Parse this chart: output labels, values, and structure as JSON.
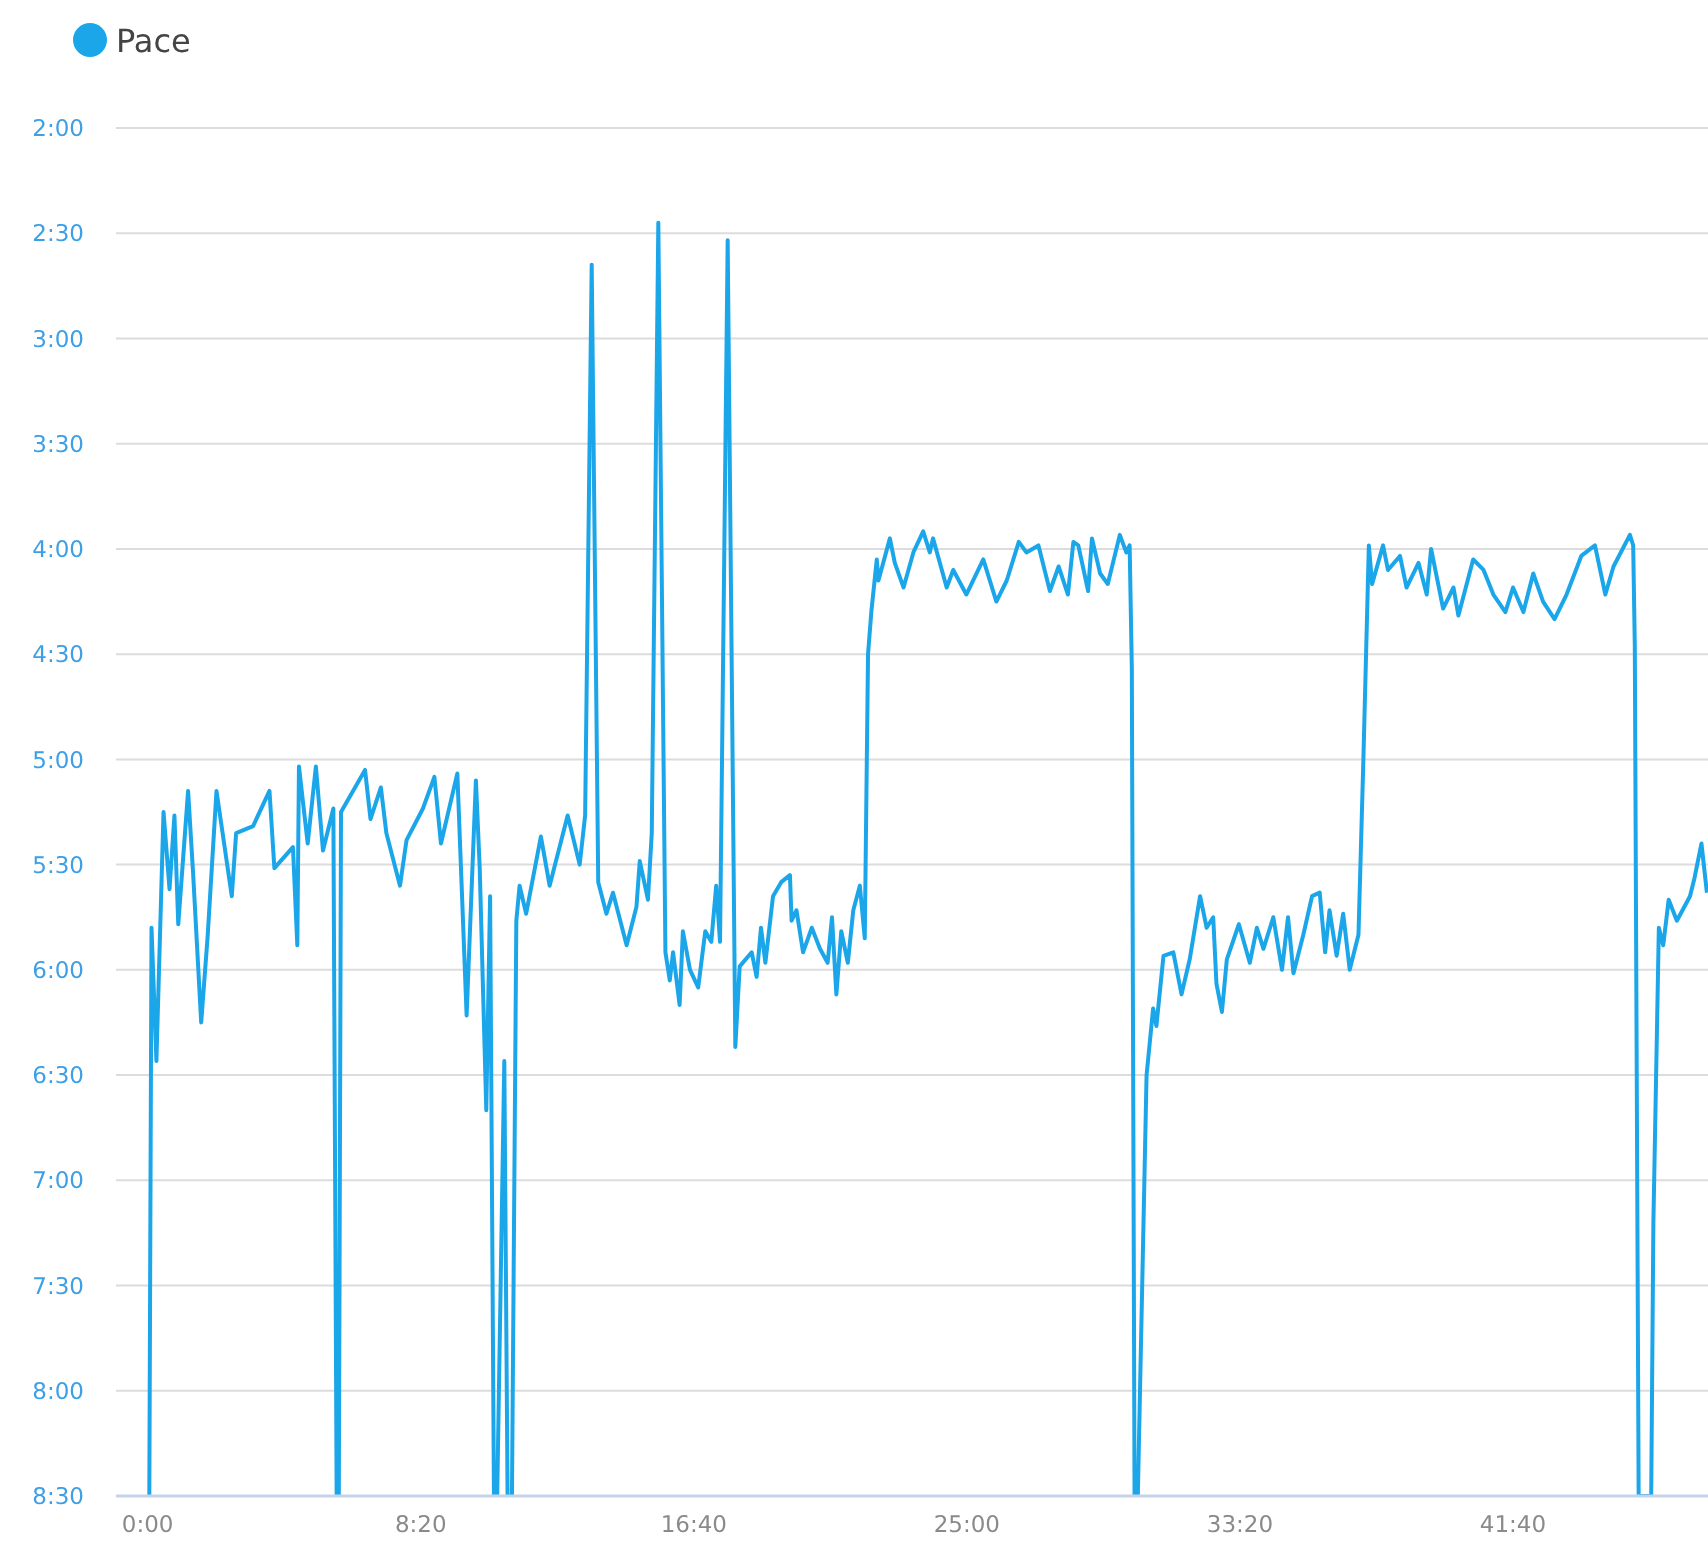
{
  "chart_data": {
    "type": "line",
    "x": [
      3,
      7,
      16,
      29,
      40,
      49,
      56,
      74,
      83,
      98,
      110,
      126,
      154,
      162,
      193,
      223,
      232,
      266,
      274,
      277,
      293,
      308,
      321,
      340,
      346,
      350,
      354,
      398,
      408,
      427,
      437,
      462,
      474,
      504,
      525,
      537,
      567,
      584,
      601,
      608,
      620,
      627,
      634,
      640,
      653,
      659,
      667,
      675,
      681,
      693,
      720,
      736,
      769,
      791,
      801,
      813,
      825,
      840,
      852,
      877,
      895,
      901,
      916,
      923,
      935,
      948,
      956,
      962,
      974,
      980,
      993,
      1008,
      1021,
      1032,
      1041,
      1048,
      1062,
      1076,
      1084,
      1106,
      1115,
      1123,
      1131,
      1145,
      1160,
      1176,
      1179,
      1188,
      1200,
      1216,
      1231,
      1245,
      1253,
      1261,
      1270,
      1282,
      1292,
      1304,
      1313,
      1319,
      1325,
      1335,
      1338,
      1359,
      1368,
      1384,
      1402,
      1420,
      1432,
      1438,
      1463,
      1475,
      1499,
      1530,
      1554,
      1573,
      1595,
      1609,
      1631,
      1652,
      1668,
      1685,
      1695,
      1704,
      1722,
      1729,
      1744,
      1758,
      1780,
      1792,
      1798,
      1802,
      1807,
      1813,
      1829,
      1841,
      1847,
      1860,
      1878,
      1893,
      1908,
      1927,
      1939,
      1951,
      1957,
      1967,
      1976,
      1998,
      2018,
      2031,
      2043,
      2061,
      2077,
      2088,
      2098,
      2116,
      2132,
      2146,
      2156,
      2164,
      2177,
      2189,
      2201,
      2217,
      2226,
      2236,
      2242,
      2262,
      2271,
      2293,
      2305,
      2327,
      2342,
      2350,
      2372,
      2391,
      2400,
      2427,
      2446,
      2464,
      2486,
      2500,
      2519,
      2537,
      2555,
      2576,
      2598,
      2625,
      2650,
      2669,
      2684,
      2714,
      2720,
      2723,
      2730,
      2753,
      2757,
      2767,
      2775,
      2785,
      2800,
      2824,
      2832,
      2845,
      2855
    ],
    "series": [
      {
        "name": "Pace",
        "color": "#1ba6ea",
        "values": [
          510,
          348,
          386,
          315,
          337,
          316,
          347,
          309,
          332,
          375,
          350,
          309,
          339,
          321,
          319,
          309,
          331,
          325,
          353,
          302,
          324,
          302,
          326,
          314,
          510,
          510,
          315,
          303,
          317,
          308,
          321,
          336,
          323,
          314,
          305,
          324,
          304,
          373,
          306,
          331,
          400,
          339,
          510,
          510,
          386,
          510,
          510,
          346,
          336,
          344,
          322,
          336,
          316,
          330,
          316,
          159,
          335,
          344,
          338,
          353,
          342,
          329,
          340,
          321,
          147,
          355,
          363,
          355,
          370,
          349,
          360,
          365,
          349,
          352,
          336,
          352,
          152,
          382,
          359,
          355,
          362,
          348,
          358,
          339,
          335,
          333,
          346,
          343,
          355,
          348,
          354,
          358,
          345,
          367,
          349,
          358,
          343,
          336,
          351,
          270,
          258,
          243,
          249,
          237,
          244,
          251,
          241,
          235,
          241,
          237,
          251,
          246,
          253,
          243,
          255,
          249,
          238,
          241,
          239,
          252,
          245,
          253,
          238,
          239,
          252,
          237,
          247,
          250,
          236,
          241,
          239,
          274,
          510,
          510,
          390,
          371,
          376,
          356,
          355,
          367,
          357,
          339,
          348,
          345,
          364,
          372,
          357,
          347,
          358,
          348,
          354,
          345,
          360,
          345,
          361,
          350,
          339,
          338,
          355,
          343,
          356,
          344,
          360,
          350,
          300,
          239,
          250,
          239,
          246,
          242,
          251,
          244,
          253,
          240,
          257,
          251,
          259,
          243,
          246,
          253,
          258,
          251,
          258,
          247,
          255,
          260,
          253,
          242,
          239,
          253,
          245,
          236,
          239,
          268,
          510,
          510,
          432,
          348,
          353,
          340,
          346,
          339,
          334,
          324,
          338
        ]
      }
    ],
    "xlim": [
      -58,
      2857
    ],
    "xticks": [
      {
        "value": 0,
        "label": "0:00"
      },
      {
        "value": 500,
        "label": "8:20"
      },
      {
        "value": 1000,
        "label": "16:40"
      },
      {
        "value": 1500,
        "label": "25:00"
      },
      {
        "value": 2000,
        "label": "33:20"
      },
      {
        "value": 2500,
        "label": "41:40"
      }
    ],
    "ylim": [
      510,
      120
    ],
    "yticks": [
      {
        "value": 120,
        "label": "2:00"
      },
      {
        "value": 150,
        "label": "2:30"
      },
      {
        "value": 180,
        "label": "3:00"
      },
      {
        "value": 210,
        "label": "3:30"
      },
      {
        "value": 240,
        "label": "4:00"
      },
      {
        "value": 270,
        "label": "4:30"
      },
      {
        "value": 300,
        "label": "5:00"
      },
      {
        "value": 330,
        "label": "5:30"
      },
      {
        "value": 360,
        "label": "6:00"
      },
      {
        "value": 390,
        "label": "6:30"
      },
      {
        "value": 420,
        "label": "7:00"
      },
      {
        "value": 450,
        "label": "7:30"
      },
      {
        "value": 480,
        "label": "8:00"
      },
      {
        "value": 510,
        "label": "8:30"
      }
    ],
    "grid": "y",
    "legend": "top left",
    "marker": "none"
  }
}
